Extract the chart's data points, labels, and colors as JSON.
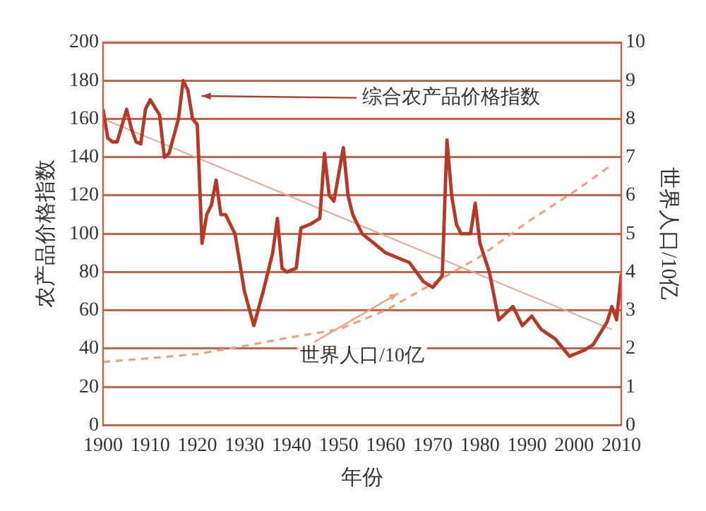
{
  "chart_data": {
    "type": "line",
    "xlabel": "年份",
    "ylabel": "农产品价格指数",
    "y2label": "世界人口/10亿",
    "xlim": [
      1900,
      2010
    ],
    "xticks": [
      1900,
      1910,
      1920,
      1930,
      1940,
      1950,
      1960,
      1970,
      1980,
      1990,
      2000,
      2010
    ],
    "ylim": [
      0,
      200
    ],
    "yticks": [
      0,
      20,
      40,
      60,
      80,
      100,
      120,
      140,
      160,
      180,
      200
    ],
    "y2lim": [
      0,
      10
    ],
    "y2ticks": [
      0,
      1,
      2,
      3,
      4,
      5,
      6,
      7,
      8,
      9,
      10
    ],
    "grid": "y",
    "legend": false,
    "marker": "none",
    "series": [
      {
        "name": "综合农产品价格指数",
        "color": "#b23a26",
        "line_style": "solid",
        "x": [
          1900,
          1901,
          1902,
          1903,
          1905,
          1906,
          1907,
          1908,
          1909,
          1910,
          1912,
          1913,
          1914,
          1916,
          1917,
          1918,
          1919,
          1920,
          1921,
          1922,
          1923,
          1924,
          1925,
          1926,
          1928,
          1930,
          1932,
          1934,
          1936,
          1937,
          1938,
          1939,
          1941,
          1942,
          1944,
          1946,
          1947,
          1948,
          1949,
          1951,
          1952,
          1953,
          1955,
          1960,
          1965,
          1968,
          1970,
          1972,
          1973,
          1974,
          1975,
          1976,
          1978,
          1979,
          1980,
          1982,
          1984,
          1987,
          1989,
          1991,
          1993,
          1996,
          1999,
          2002,
          2004,
          2007,
          2008,
          2009,
          2010
        ],
        "values": [
          165,
          150,
          148,
          148,
          165,
          155,
          148,
          147,
          165,
          170,
          162,
          140,
          142,
          160,
          180,
          175,
          160,
          157,
          95,
          110,
          115,
          128,
          110,
          110,
          100,
          70,
          52,
          70,
          90,
          108,
          82,
          80,
          82,
          103,
          105,
          108,
          142,
          120,
          117,
          145,
          120,
          110,
          100,
          90,
          85,
          75,
          72,
          78,
          149,
          120,
          105,
          100,
          100,
          116,
          95,
          80,
          55,
          62,
          52,
          57,
          50,
          45,
          36,
          39,
          42,
          54,
          62,
          55,
          79
        ]
      },
      {
        "name": "世界人口/10亿",
        "color": "#eba27e",
        "line_style": "dashed",
        "axis": "y2",
        "x": [
          1900,
          1910,
          1920,
          1930,
          1940,
          1950,
          1960,
          1970,
          1980,
          1990,
          2000,
          2008
        ],
        "values": [
          1.65,
          1.75,
          1.86,
          2.07,
          2.3,
          2.5,
          3.0,
          3.7,
          4.4,
          5.3,
          6.1,
          6.8
        ]
      },
      {
        "color": "#e3a898",
        "line_style": "solid",
        "x": [
          1900,
          2008
        ],
        "values": [
          160,
          50
        ]
      }
    ]
  }
}
